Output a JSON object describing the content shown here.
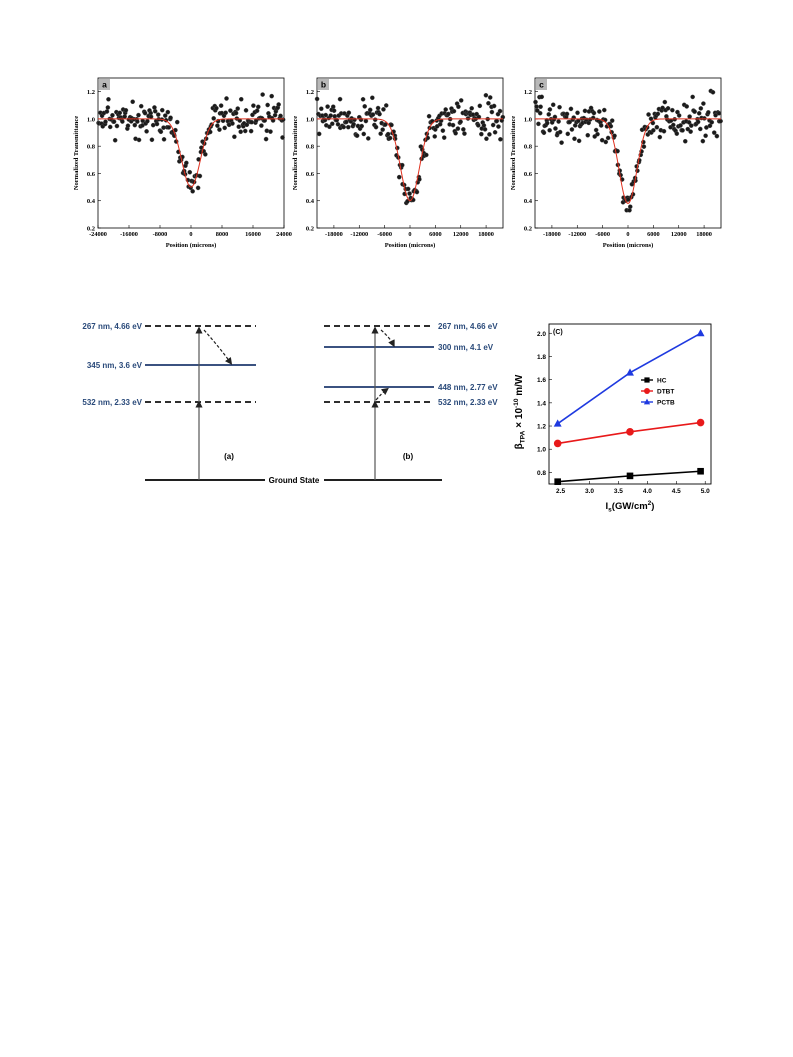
{
  "zscan": {
    "panels": [
      {
        "letter": "a",
        "xlim": [
          -24000,
          24000
        ],
        "ylim": [
          0.2,
          1.3
        ],
        "xticks": [
          "-24000",
          "-16000",
          "-8000",
          "0",
          "8000",
          "16000",
          "24000"
        ],
        "yticks": [
          "0.2",
          "0.4",
          "0.6",
          "0.8",
          "1.0",
          "1.2"
        ],
        "fit": {
          "baseline": 1.0,
          "min": 0.5,
          "width": 2400,
          "shoulder": 0.06
        },
        "noise": 0.09,
        "seed": 11
      },
      {
        "letter": "b",
        "xlim": [
          -22000,
          22000
        ],
        "ylim": [
          0.2,
          1.3
        ],
        "xticks": [
          "-18000",
          "-12000",
          "-6000",
          "0",
          "6000",
          "12000",
          "18000"
        ],
        "yticks": [
          "0.2",
          "0.4",
          "0.6",
          "0.8",
          "1.0",
          "1.2"
        ],
        "fit": {
          "baseline": 1.0,
          "min": 0.4,
          "width": 2200,
          "shoulder": 0.05
        },
        "noise": 0.09,
        "seed": 23
      },
      {
        "letter": "c",
        "xlim": [
          -22000,
          22000
        ],
        "ylim": [
          0.2,
          1.3
        ],
        "xticks": [
          "-18000",
          "-12000",
          "-6000",
          "0",
          "6000",
          "12000",
          "18000"
        ],
        "yticks": [
          "0.2",
          "0.4",
          "0.6",
          "0.8",
          "1.0",
          "1.2"
        ],
        "fit": {
          "baseline": 1.0,
          "min": 0.38,
          "width": 2100,
          "shoulder": 0.05
        },
        "noise": 0.09,
        "seed": 37
      }
    ],
    "ylabel": "Normalized Transmittance",
    "xlabel": "Position (microns)",
    "colors": {
      "dots": "#1a1a1a",
      "fit": "#e0301e",
      "badge": "#b8b8b8"
    }
  },
  "energy": {
    "diagram_a": {
      "levels": [
        {
          "label": "267 nm, 4.66 eV",
          "style": "dashed"
        },
        {
          "label": "345 nm, 3.6 eV",
          "style": "solid"
        },
        {
          "label": "532 nm, 2.33 eV",
          "style": "dashed"
        }
      ],
      "caption": "(a)"
    },
    "diagram_b": {
      "levels": [
        {
          "label": "267 nm, 4.66 eV",
          "style": "dashed"
        },
        {
          "label": "300 nm, 4.1 eV",
          "style": "solid"
        },
        {
          "label": "448 nm, 2.77 eV",
          "style": "solid"
        },
        {
          "label": "532 nm, 2.33 eV",
          "style": "dashed"
        }
      ],
      "caption": "(b)"
    },
    "ground": "Ground State",
    "colors": {
      "solid": "#1f3a6e",
      "dashed": "#111111",
      "label": "#2a4a7a"
    }
  },
  "chart_data": {
    "type": "line",
    "panel_label": "(C)",
    "x": [
      2.45,
      3.7,
      4.92
    ],
    "series": [
      {
        "name": "HC",
        "values": [
          0.72,
          0.77,
          0.81
        ],
        "color": "#000000",
        "marker": "square"
      },
      {
        "name": "DTBT",
        "values": [
          1.05,
          1.15,
          1.23
        ],
        "color": "#e8191a",
        "marker": "circle"
      },
      {
        "name": "PCTB",
        "values": [
          1.22,
          1.66,
          2.0
        ],
        "color": "#1f3ae0",
        "marker": "triangle"
      }
    ],
    "xlim": [
      2.3,
      5.1
    ],
    "ylim": [
      0.7,
      2.08
    ],
    "xticks": [
      "2.5",
      "3.0",
      "3.5",
      "4.0",
      "4.5",
      "5.0"
    ],
    "yticks": [
      "0.8",
      "1.0",
      "1.2",
      "1.4",
      "1.6",
      "1.8",
      "2.0"
    ],
    "ylabel_main": "β",
    "ylabel_sub": "TPA",
    "ylabel_rest": "× 10",
    "ylabel_exp": "-10",
    "ylabel_unit": " m/W",
    "xlabel_main": "I",
    "xlabel_sub": "s",
    "xlabel_rest": "(GW/cm",
    "xlabel_exp": "2",
    "xlabel_end": ")",
    "legend_position": "upper-right"
  }
}
